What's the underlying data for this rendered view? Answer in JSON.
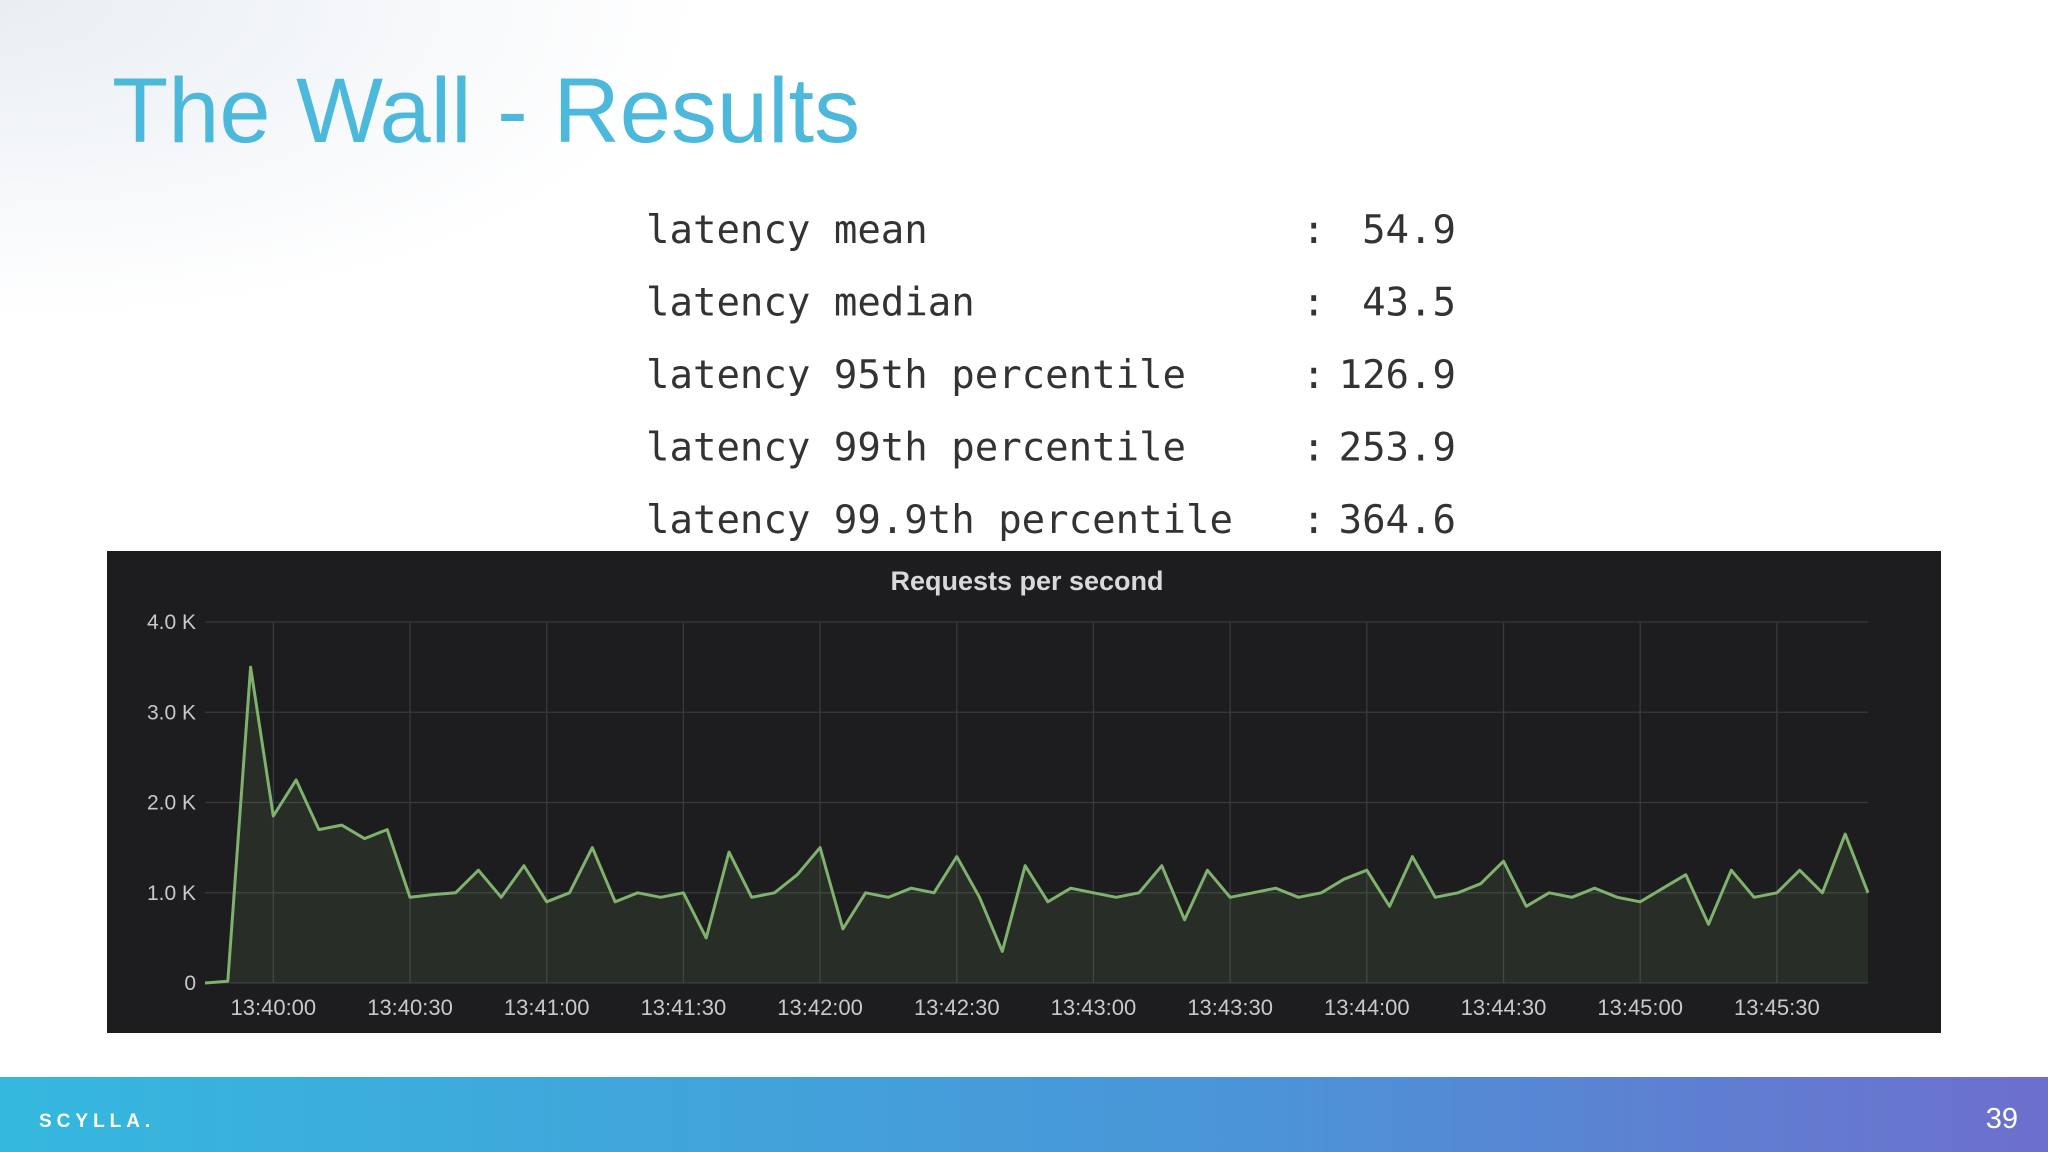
{
  "header": {
    "title": "The Wall - Results"
  },
  "stats": {
    "separator": ":",
    "rows": [
      {
        "label": "latency mean",
        "value": 54.9
      },
      {
        "label": "latency median",
        "value": 43.5
      },
      {
        "label": "latency 95th percentile",
        "value": 126.9
      },
      {
        "label": "latency 99th percentile",
        "value": 253.9
      },
      {
        "label": "latency 99.9th percentile",
        "value": 364.6
      }
    ]
  },
  "chart_data": {
    "type": "line",
    "title": "Requests per second",
    "color": "#7eb26d",
    "grid": true,
    "x": [
      "13:39:45",
      "13:39:50",
      "13:39:55",
      "13:40:00",
      "13:40:05",
      "13:40:10",
      "13:40:15",
      "13:40:20",
      "13:40:25",
      "13:40:30",
      "13:40:35",
      "13:40:40",
      "13:40:45",
      "13:40:50",
      "13:40:55",
      "13:41:00",
      "13:41:05",
      "13:41:10",
      "13:41:15",
      "13:41:20",
      "13:41:25",
      "13:41:30",
      "13:41:35",
      "13:41:40",
      "13:41:45",
      "13:41:50",
      "13:41:55",
      "13:42:00",
      "13:42:05",
      "13:42:10",
      "13:42:15",
      "13:42:20",
      "13:42:25",
      "13:42:30",
      "13:42:35",
      "13:42:40",
      "13:42:45",
      "13:42:50",
      "13:42:55",
      "13:43:00",
      "13:43:05",
      "13:43:10",
      "13:43:15",
      "13:43:20",
      "13:43:25",
      "13:43:30",
      "13:43:35",
      "13:43:40",
      "13:43:45",
      "13:43:50",
      "13:43:55",
      "13:44:00",
      "13:44:05",
      "13:44:10",
      "13:44:15",
      "13:44:20",
      "13:44:25",
      "13:44:30",
      "13:44:35",
      "13:44:40",
      "13:44:45",
      "13:44:50",
      "13:44:55",
      "13:45:00",
      "13:45:05",
      "13:45:10",
      "13:45:15",
      "13:45:20",
      "13:45:25",
      "13:45:30",
      "13:45:35",
      "13:45:40",
      "13:45:45",
      "13:45:50"
    ],
    "values": [
      0,
      20,
      3500,
      1850,
      2250,
      1700,
      1750,
      1600,
      1700,
      950,
      980,
      1000,
      1250,
      950,
      1300,
      900,
      1000,
      1500,
      900,
      1000,
      950,
      1000,
      500,
      1450,
      950,
      1000,
      1200,
      1500,
      600,
      1000,
      950,
      1050,
      1000,
      1400,
      950,
      350,
      1300,
      900,
      1050,
      1000,
      950,
      1000,
      1300,
      700,
      1250,
      950,
      1000,
      1050,
      950,
      1000,
      1150,
      1250,
      850,
      1400,
      950,
      1000,
      1100,
      1350,
      850,
      1000,
      950,
      1050,
      950,
      900,
      1050,
      1200,
      650,
      1250,
      950,
      1000,
      1250,
      1000,
      1650,
      1000
    ],
    "xlim": [
      "13:39:45",
      "13:45:50"
    ],
    "xticks": [
      "13:40:00",
      "13:40:30",
      "13:41:00",
      "13:41:30",
      "13:42:00",
      "13:42:30",
      "13:43:00",
      "13:43:30",
      "13:44:00",
      "13:44:30",
      "13:45:00",
      "13:45:30"
    ],
    "ylim": [
      0,
      4000
    ],
    "yticks": [
      0,
      {
        "value": 1000,
        "label": "1.0 K"
      },
      {
        "value": 2000,
        "label": "2.0 K"
      },
      {
        "value": 3000,
        "label": "3.0 K"
      },
      {
        "value": 4000,
        "label": "4.0 K"
      }
    ]
  },
  "footer": {
    "logo": "SCYLLA.",
    "page_number": 39
  }
}
